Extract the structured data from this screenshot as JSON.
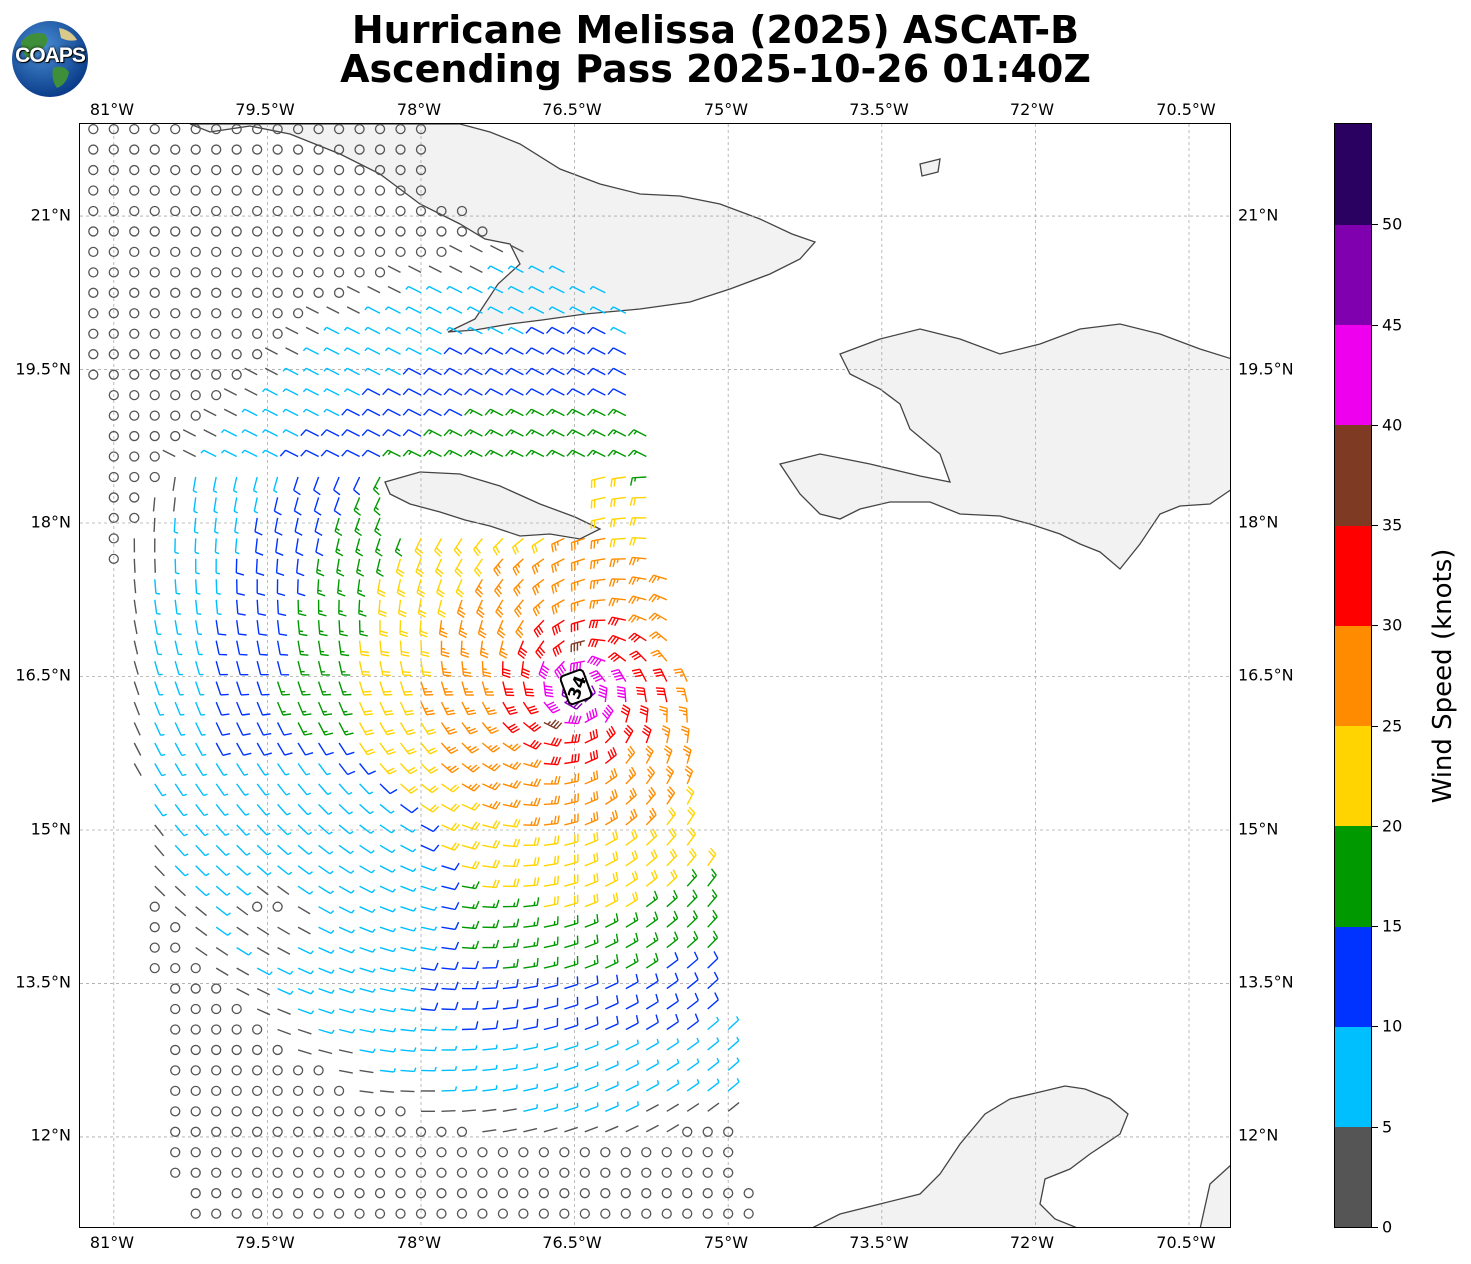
{
  "title_line1": "Hurricane Melissa (2025) ASCAT-B",
  "title_line2": "Ascending Pass 2025-10-26 01:40Z",
  "logo_text": "COAPS",
  "lon_labels": [
    "81°W",
    "79.5°W",
    "78°W",
    "76.5°W",
    "75°W",
    "73.5°W",
    "72°W",
    "70.5°W"
  ],
  "lat_labels": [
    "21°N",
    "19.5°N",
    "18°N",
    "16.5°N",
    "15°N",
    "13.5°N",
    "12°N"
  ],
  "map": {
    "lon_range": [
      -81.33,
      -70.08
    ],
    "lat_range": [
      11.1,
      21.9
    ],
    "center_label": "34",
    "center": {
      "lon": -76.45,
      "lat": 16.37
    },
    "land_color": "#f2f2f2",
    "coast_color": "#444444",
    "grid_color": "#aaaaaa"
  },
  "colorbar": {
    "label": "Wind Speed (knots)",
    "ticks": [
      "0",
      "5",
      "10",
      "15",
      "20",
      "25",
      "30",
      "35",
      "40",
      "45",
      "50"
    ],
    "bins": [
      {
        "min": 0,
        "max": 5,
        "color": "#555555"
      },
      {
        "min": 5,
        "max": 10,
        "color": "#00bfff"
      },
      {
        "min": 10,
        "max": 15,
        "color": "#0033ff"
      },
      {
        "min": 15,
        "max": 20,
        "color": "#009900"
      },
      {
        "min": 20,
        "max": 25,
        "color": "#ffd400"
      },
      {
        "min": 25,
        "max": 30,
        "color": "#ff8c00"
      },
      {
        "min": 30,
        "max": 35,
        "color": "#ff0000"
      },
      {
        "min": 35,
        "max": 40,
        "color": "#7f3a24"
      },
      {
        "min": 40,
        "max": 45,
        "color": "#ee00ee"
      },
      {
        "min": 45,
        "max": 50,
        "color": "#8000b0"
      },
      {
        "min": 50,
        "max": 55,
        "color": "#2a0060"
      }
    ]
  }
}
